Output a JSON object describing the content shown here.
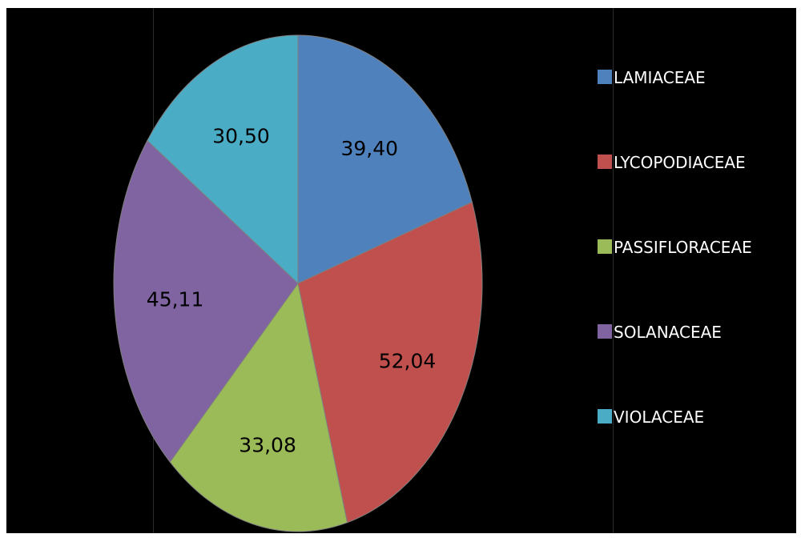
{
  "chart_data": {
    "type": "pie",
    "categories": [
      "LAMIACEAE",
      "LYCOPODIACEAE",
      "PASSIFLORACEAE",
      "SOLANACEAE",
      "VIOLACEAE"
    ],
    "values": [
      39.4,
      52.04,
      33.08,
      45.11,
      30.5
    ],
    "data_labels": [
      "39,40",
      "52,04",
      "33,08",
      "45,11",
      "30,50"
    ],
    "colors": [
      "#4f81bd",
      "#c0504d",
      "#9bbb59",
      "#8064a2",
      "#4bacc6"
    ],
    "legend": {
      "position": "right",
      "entries": [
        "LAMIACEAE",
        "LYCOPODIACEAE",
        "PASSIFLORACEAE",
        "SOLANACEAE",
        "VIOLACEAE"
      ]
    },
    "start_angle": "12 o'clock",
    "direction": "clockwise",
    "background": "#000000"
  }
}
